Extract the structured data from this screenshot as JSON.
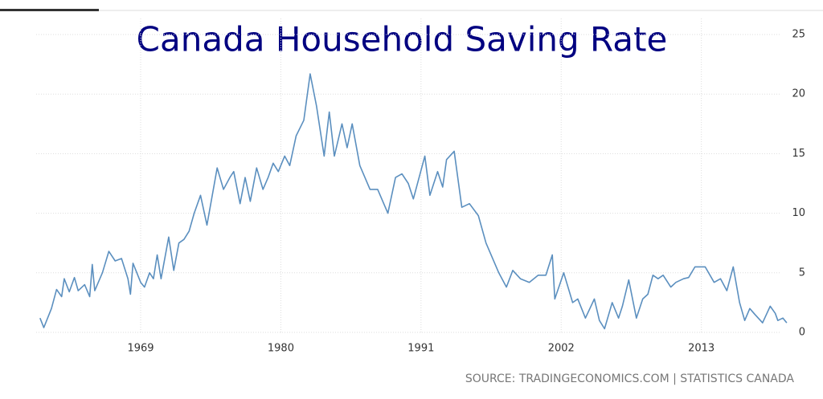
{
  "chart_data": {
    "type": "line",
    "title": "Canada Household Saving Rate",
    "source": "SOURCE: TRADINGECONOMICS.COM | STATISTICS CANADA",
    "x": [
      1961.1,
      1961.4,
      1962.0,
      1962.4,
      1962.8,
      1963.0,
      1963.4,
      1963.8,
      1964.1,
      1964.6,
      1965.0,
      1965.2,
      1965.4,
      1966.0,
      1966.5,
      1967.0,
      1967.5,
      1968.0,
      1968.2,
      1968.4,
      1969.0,
      1969.3,
      1969.7,
      1970.0,
      1970.3,
      1970.6,
      1971.2,
      1971.6,
      1972.0,
      1972.4,
      1972.8,
      1973.2,
      1973.7,
      1974.2,
      1975.0,
      1975.5,
      1976.0,
      1976.3,
      1976.8,
      1977.2,
      1977.6,
      1978.1,
      1978.6,
      1979.0,
      1979.4,
      1979.8,
      1980.3,
      1980.7,
      1981.2,
      1981.8,
      1982.3,
      1982.8,
      1983.4,
      1983.8,
      1984.2,
      1984.8,
      1985.2,
      1985.6,
      1986.2,
      1987.0,
      1987.6,
      1988.4,
      1989.0,
      1989.5,
      1990.0,
      1990.4,
      1991.3,
      1991.7,
      1992.3,
      1992.7,
      1993.0,
      1993.6,
      1994.2,
      1994.8,
      1995.5,
      1996.1,
      1997.1,
      1997.7,
      1998.2,
      1998.8,
      1999.5,
      2000.2,
      2000.8,
      2001.3,
      2001.5,
      2002.2,
      2002.9,
      2003.3,
      2003.9,
      2004.6,
      2005.0,
      2005.4,
      2006.0,
      2006.5,
      2006.8,
      2007.3,
      2007.9,
      2008.4,
      2008.8,
      2009.2,
      2009.6,
      2010.0,
      2010.6,
      2011.0,
      2011.6,
      2012.0,
      2012.5,
      2013.3,
      2014.0,
      2014.5,
      2015.0,
      2015.5,
      2016.0,
      2016.4,
      2016.8,
      2017.2,
      2017.8,
      2018.4,
      2018.8,
      2019.0,
      2019.4,
      2019.7
    ],
    "values": [
      1.2,
      0.4,
      2.0,
      3.6,
      3.0,
      4.5,
      3.4,
      4.6,
      3.5,
      4.0,
      3.0,
      5.7,
      3.5,
      5.0,
      6.8,
      6.0,
      6.2,
      4.5,
      3.2,
      5.8,
      4.2,
      3.8,
      5.0,
      4.5,
      6.5,
      4.5,
      8.0,
      5.2,
      7.5,
      7.8,
      8.5,
      10.0,
      11.5,
      9.0,
      13.8,
      12.0,
      13.0,
      13.5,
      10.8,
      13.0,
      11.0,
      13.8,
      12.0,
      13.0,
      14.2,
      13.5,
      14.8,
      14.0,
      16.5,
      17.8,
      21.7,
      19.0,
      14.8,
      18.5,
      14.8,
      17.5,
      15.5,
      17.5,
      14.0,
      12.0,
      12.0,
      10.0,
      13.0,
      13.3,
      12.5,
      11.2,
      14.8,
      11.5,
      13.5,
      12.2,
      14.5,
      15.2,
      10.5,
      10.8,
      9.8,
      7.5,
      5.0,
      3.8,
      5.2,
      4.5,
      4.2,
      4.8,
      4.8,
      6.5,
      2.8,
      5.0,
      2.5,
      2.8,
      1.2,
      2.8,
      1.0,
      0.3,
      2.5,
      1.2,
      2.2,
      4.4,
      1.2,
      2.8,
      3.2,
      4.8,
      4.5,
      4.8,
      3.8,
      4.2,
      4.5,
      4.6,
      5.5,
      5.5,
      4.2,
      4.5,
      3.5,
      5.5,
      2.5,
      1.0,
      2.0,
      1.5,
      0.8,
      2.2,
      1.6,
      1.0,
      1.2,
      0.8
    ],
    "color": "#5b8fbf",
    "xlim": [
      1960.8,
      2020.4
    ],
    "xticks": [
      1969,
      1980,
      1991,
      2002,
      2013
    ],
    "ylim": [
      0,
      25
    ],
    "yticks": [
      0,
      5,
      10,
      15,
      20,
      25
    ],
    "grid": true
  }
}
